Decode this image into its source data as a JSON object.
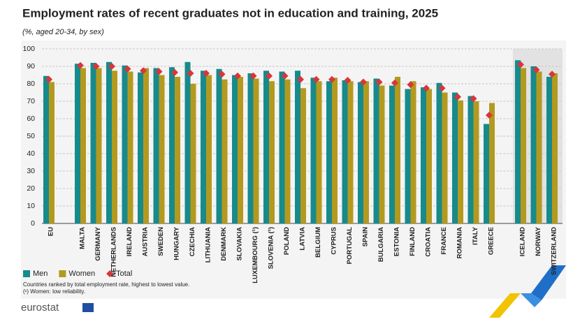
{
  "chart_data": {
    "type": "bar",
    "title": "Employment rates of recent graduates not in education and training, 2025",
    "subtitle": "(%, aged 20-34, by sex)",
    "categories": [
      "EU",
      "MALTA",
      "GERMANY",
      "NETHERLANDS",
      "IRELAND",
      "AUSTRIA",
      "SWEDEN",
      "HUNGARY",
      "CZECHIA",
      "LITHUANIA",
      "DENMARK",
      "SLOVAKIA",
      "LUXEMBOURG (¹)",
      "SLOVENIA (¹)",
      "POLAND",
      "LATVIA",
      "BELGIUM",
      "CYPRUS",
      "PORTUGAL",
      "SPAIN",
      "BULGARIA",
      "ESTONIA",
      "FINLAND",
      "CROATIA",
      "FRANCE",
      "ROMANIA",
      "ITALY",
      "GREECE",
      "ICELAND",
      "NORWAY",
      "SWITZERLAND"
    ],
    "series": [
      {
        "name": "Men",
        "color": "#178a8c",
        "values": [
          84.5,
          91.5,
          92,
          92.5,
          90.5,
          86.5,
          89,
          89.5,
          92.5,
          87.5,
          88.5,
          85,
          86,
          87.5,
          87,
          87.5,
          83.5,
          81.5,
          82,
          81,
          83,
          79,
          77,
          78,
          80.5,
          75,
          73,
          57,
          93.5,
          90,
          84
        ]
      },
      {
        "name": "Women",
        "color": "#b39a1f",
        "values": [
          81,
          89,
          89,
          87.5,
          87,
          89,
          85,
          84,
          80,
          85,
          82.5,
          84,
          83,
          81.5,
          82.5,
          77.5,
          81.5,
          83.5,
          81.5,
          81.5,
          79,
          84,
          81.5,
          77,
          75,
          70.5,
          70,
          69,
          89,
          87,
          86
        ]
      },
      {
        "name": "Total",
        "color": "#d8363a",
        "marker": "diamond",
        "values": [
          82.5,
          90.5,
          90,
          90,
          88.5,
          87.5,
          87,
          86.5,
          86,
          86,
          85.5,
          84.5,
          84.5,
          84.5,
          84.5,
          82.5,
          82.5,
          82.5,
          82,
          81,
          81,
          80.5,
          79.5,
          77.5,
          77.5,
          72.5,
          71.5,
          62,
          91,
          88,
          85.5
        ]
      }
    ],
    "ylim": [
      0,
      100
    ],
    "yticks": [
      0,
      10,
      20,
      30,
      40,
      50,
      60,
      70,
      80,
      90,
      100
    ],
    "grid": true,
    "notes": [
      "Countries ranked by total employment rate, highest to lowest value.",
      "(¹) Women: low reliability."
    ],
    "source": "eurostat"
  }
}
